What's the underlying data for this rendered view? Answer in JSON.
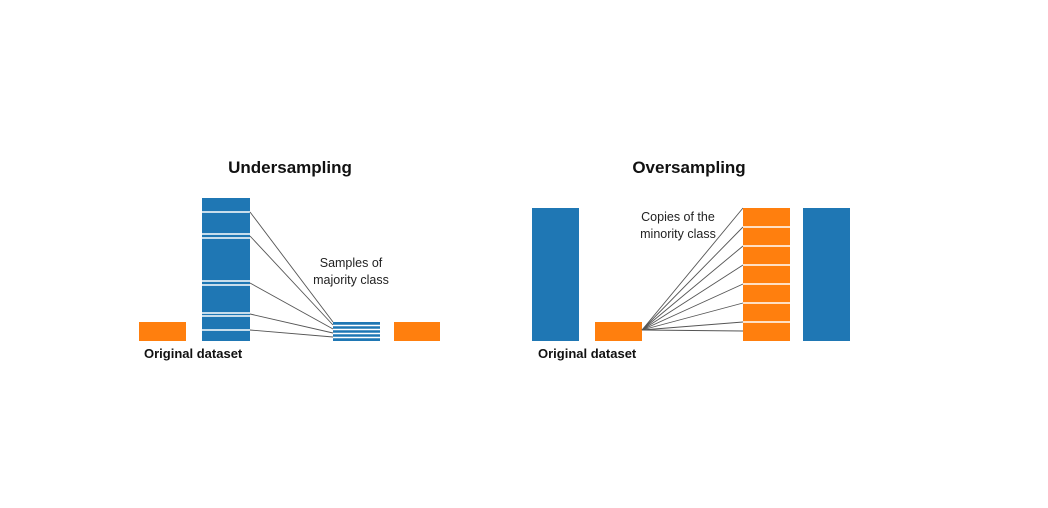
{
  "colors": {
    "majority": "#1f77b4",
    "minority": "#ff7f0e"
  },
  "undersampling": {
    "title": "Undersampling",
    "annotation_line1": "Samples of",
    "annotation_line2": "majority class",
    "caption": "Original dataset"
  },
  "oversampling": {
    "title": "Oversampling",
    "annotation_line1": "Copies of the",
    "annotation_line2": "minority class",
    "caption": "Original dataset"
  }
}
